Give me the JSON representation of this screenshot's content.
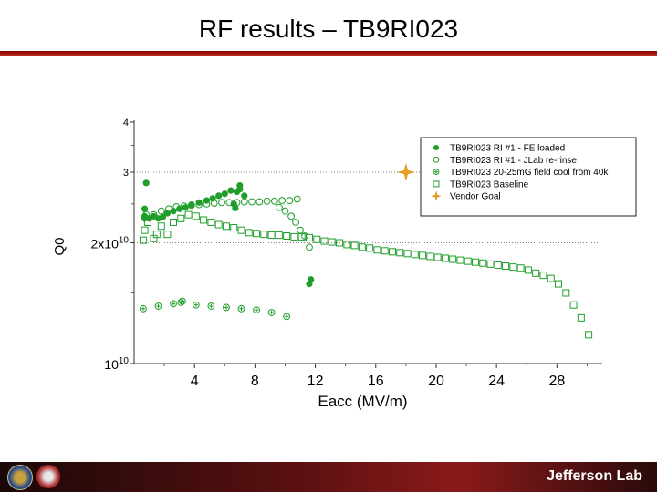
{
  "slide": {
    "title": "RF results – TB9RI023",
    "footer_brand": "Jefferson Lab"
  },
  "colors": {
    "header_rule": "#a01010",
    "series_green": "#1f9e2a",
    "vendor_goal": "#f0a020"
  },
  "chart_data": {
    "type": "scatter",
    "title": "",
    "xlabel": "Eacc (MV/m)",
    "ylabel": "Q0",
    "xlim": [
      0,
      31
    ],
    "ylim": [
      10000000000.0,
      40000000000.0
    ],
    "yscale": "log",
    "x_ticks": [
      4,
      8,
      12,
      16,
      20,
      24,
      28
    ],
    "y_ticks": [
      {
        "value": 10000000000.0,
        "label": "10",
        "exp": "10"
      },
      {
        "value": 20000000000.0,
        "label": "2x10",
        "exp": "10"
      },
      {
        "value": 30000000000.0,
        "label": "3",
        "exp": ""
      },
      {
        "value": 40000000000.0,
        "label": "4",
        "exp": ""
      }
    ],
    "reference_lines": [
      10000000000.0,
      20000000000.0,
      30000000000.0
    ],
    "legend_position": "top-right",
    "series": [
      {
        "name": "TB9RI023 RI #1 - FE loaded",
        "marker": "filled-circle",
        "points": [
          [
            0.7,
            24300000000.0
          ],
          [
            0.7,
            23300000000.0
          ],
          [
            0.7,
            23000000000.0
          ],
          [
            0.8,
            28200000000.0
          ],
          [
            1.0,
            23000000000.0
          ],
          [
            1.3,
            23300000000.0
          ],
          [
            1.6,
            23000000000.0
          ],
          [
            1.9,
            23200000000.0
          ],
          [
            2.2,
            23700000000.0
          ],
          [
            2.6,
            24000000000.0
          ],
          [
            3.0,
            24300000000.0
          ],
          [
            3.4,
            24500000000.0
          ],
          [
            3.8,
            24900000000.0
          ],
          [
            4.3,
            25200000000.0
          ],
          [
            4.8,
            25500000000.0
          ],
          [
            5.2,
            25800000000.0
          ],
          [
            5.6,
            26200000000.0
          ],
          [
            6.0,
            26500000000.0
          ],
          [
            6.4,
            27000000000.0
          ],
          [
            6.6,
            25000000000.0
          ],
          [
            6.7,
            24400000000.0
          ],
          [
            6.8,
            26800000000.0
          ],
          [
            7.0,
            27200000000.0
          ],
          [
            7.0,
            27800000000.0
          ],
          [
            7.3,
            26200000000.0
          ],
          [
            11.6,
            15800000000.0
          ],
          [
            11.7,
            16200000000.0
          ]
        ]
      },
      {
        "name": "TB9RI023 RI #1 - JLab re-rinse",
        "marker": "open-circle",
        "points": [
          [
            0.8,
            23500000000.0
          ],
          [
            1.3,
            23500000000.0
          ],
          [
            1.8,
            24000000000.0
          ],
          [
            2.3,
            24300000000.0
          ],
          [
            2.8,
            24600000000.0
          ],
          [
            3.3,
            24700000000.0
          ],
          [
            3.8,
            24800000000.0
          ],
          [
            4.3,
            24900000000.0
          ],
          [
            4.8,
            25000000000.0
          ],
          [
            5.3,
            25100000000.0
          ],
          [
            5.8,
            25200000000.0
          ],
          [
            6.3,
            25200000000.0
          ],
          [
            6.8,
            25200000000.0
          ],
          [
            7.3,
            25300000000.0
          ],
          [
            7.8,
            25300000000.0
          ],
          [
            8.3,
            25300000000.0
          ],
          [
            8.8,
            25400000000.0
          ],
          [
            9.3,
            25400000000.0
          ],
          [
            9.8,
            25500000000.0
          ],
          [
            10.3,
            25500000000.0
          ],
          [
            10.8,
            25700000000.0
          ],
          [
            9.6,
            24500000000.0
          ],
          [
            10.0,
            24000000000.0
          ],
          [
            10.4,
            23300000000.0
          ],
          [
            10.7,
            22500000000.0
          ],
          [
            11.0,
            21500000000.0
          ],
          [
            11.3,
            20800000000.0
          ],
          [
            11.6,
            19500000000.0
          ]
        ]
      },
      {
        "name": "TB9RI023 20-25mG field cool from 40k",
        "marker": "circle-plus",
        "points": [
          [
            0.6,
            13700000000.0
          ],
          [
            1.6,
            13900000000.0
          ],
          [
            2.6,
            14100000000.0
          ],
          [
            3.1,
            14200000000.0
          ],
          [
            3.2,
            14300000000.0
          ],
          [
            4.1,
            14000000000.0
          ],
          [
            5.1,
            13900000000.0
          ],
          [
            6.1,
            13800000000.0
          ],
          [
            7.1,
            13700000000.0
          ],
          [
            8.1,
            13600000000.0
          ],
          [
            9.1,
            13400000000.0
          ],
          [
            10.1,
            13100000000.0
          ]
        ]
      },
      {
        "name": "TB9RI023 Baseline",
        "marker": "open-square",
        "points": [
          [
            0.6,
            20300000000.0
          ],
          [
            0.7,
            21500000000.0
          ],
          [
            0.9,
            22500000000.0
          ],
          [
            1.3,
            20500000000.0
          ],
          [
            1.5,
            21000000000.0
          ],
          [
            1.8,
            22000000000.0
          ],
          [
            2.2,
            21000000000.0
          ],
          [
            2.6,
            22500000000.0
          ],
          [
            3.1,
            23000000000.0
          ],
          [
            3.6,
            23500000000.0
          ],
          [
            4.1,
            23300000000.0
          ],
          [
            4.6,
            22800000000.0
          ],
          [
            5.1,
            22500000000.0
          ],
          [
            5.6,
            22200000000.0
          ],
          [
            6.1,
            22000000000.0
          ],
          [
            6.6,
            21800000000.0
          ],
          [
            7.1,
            21500000000.0
          ],
          [
            7.6,
            21200000000.0
          ],
          [
            8.1,
            21100000000.0
          ],
          [
            8.6,
            21000000000.0
          ],
          [
            9.1,
            20900000000.0
          ],
          [
            9.6,
            20900000000.0
          ],
          [
            10.1,
            20800000000.0
          ],
          [
            10.6,
            20700000000.0
          ],
          [
            11.1,
            20700000000.0
          ],
          [
            11.6,
            20600000000.0
          ],
          [
            12.1,
            20400000000.0
          ],
          [
            12.6,
            20200000000.0
          ],
          [
            13.1,
            20100000000.0
          ],
          [
            13.6,
            20000000000.0
          ],
          [
            14.1,
            19800000000.0
          ],
          [
            14.6,
            19700000000.0
          ],
          [
            15.1,
            19500000000.0
          ],
          [
            15.6,
            19400000000.0
          ],
          [
            16.1,
            19200000000.0
          ],
          [
            16.6,
            19100000000.0
          ],
          [
            17.1,
            19000000000.0
          ],
          [
            17.6,
            18900000000.0
          ],
          [
            18.1,
            18800000000.0
          ],
          [
            18.6,
            18700000000.0
          ],
          [
            19.1,
            18600000000.0
          ],
          [
            19.6,
            18500000000.0
          ],
          [
            20.1,
            18400000000.0
          ],
          [
            20.6,
            18300000000.0
          ],
          [
            21.1,
            18200000000.0
          ],
          [
            21.6,
            18100000000.0
          ],
          [
            22.1,
            18000000000.0
          ],
          [
            22.6,
            17900000000.0
          ],
          [
            23.1,
            17800000000.0
          ],
          [
            23.6,
            17700000000.0
          ],
          [
            24.1,
            17600000000.0
          ],
          [
            24.6,
            17500000000.0
          ],
          [
            25.1,
            17400000000.0
          ],
          [
            25.6,
            17300000000.0
          ],
          [
            26.1,
            17100000000.0
          ],
          [
            26.6,
            16800000000.0
          ],
          [
            27.1,
            16600000000.0
          ],
          [
            27.6,
            16300000000.0
          ],
          [
            28.1,
            15800000000.0
          ],
          [
            28.6,
            15000000000.0
          ],
          [
            29.1,
            14000000000.0
          ],
          [
            29.6,
            13000000000.0
          ],
          [
            30.1,
            11800000000.0
          ]
        ]
      },
      {
        "name": "Vendor Goal",
        "marker": "star",
        "points": [
          [
            18,
            30000000000.0
          ]
        ]
      }
    ]
  }
}
